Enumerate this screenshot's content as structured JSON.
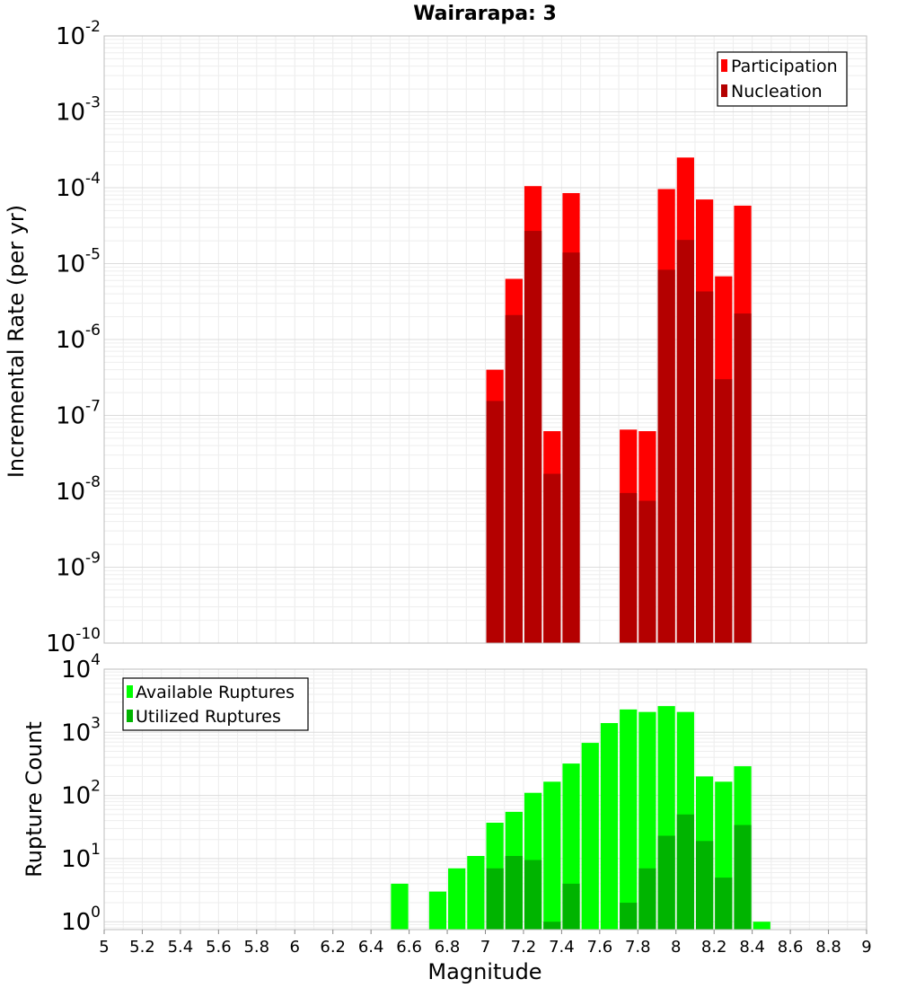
{
  "chart_data": [
    {
      "type": "bar",
      "title": "Wairarapa: 3",
      "xlabel": "",
      "ylabel": "Incremental Rate (per yr)",
      "xlim": [
        5,
        9
      ],
      "ylim": [
        1e-10,
        0.01
      ],
      "yscale": "log",
      "grid": true,
      "legend": "top-right",
      "bin_width": 0.1,
      "y_ticks": [
        {
          "base": "10",
          "exp": "-2",
          "value": 0.01
        },
        {
          "base": "10",
          "exp": "-3",
          "value": 0.001
        },
        {
          "base": "10",
          "exp": "-4",
          "value": 0.0001
        },
        {
          "base": "10",
          "exp": "-5",
          "value": 1e-05
        },
        {
          "base": "10",
          "exp": "-6",
          "value": 1e-06
        },
        {
          "base": "10",
          "exp": "-7",
          "value": 1e-07
        },
        {
          "base": "10",
          "exp": "-8",
          "value": 1e-08
        },
        {
          "base": "10",
          "exp": "-9",
          "value": 1e-09
        },
        {
          "base": "10",
          "exp": "-10",
          "value": 1e-10
        }
      ],
      "series": [
        {
          "name": "Participation",
          "color": "#ff0000",
          "x": [
            7.05,
            7.15,
            7.25,
            7.35,
            7.45,
            7.75,
            7.85,
            7.95,
            8.05,
            8.15,
            8.25,
            8.35
          ],
          "values": [
            4e-07,
            6.3e-06,
            0.000105,
            6.2e-08,
            8.5e-05,
            6.5e-08,
            6.2e-08,
            9.6e-05,
            0.00025,
            7e-05,
            6.8e-06,
            5.8e-05
          ]
        },
        {
          "name": "Nucleation",
          "color": "#b40000",
          "x": [
            7.05,
            7.15,
            7.25,
            7.35,
            7.45,
            7.75,
            7.85,
            7.95,
            8.05,
            8.15,
            8.25,
            8.35
          ],
          "values": [
            1.55e-07,
            2.1e-06,
            2.7e-05,
            1.7e-08,
            1.4e-05,
            9.5e-09,
            7.5e-09,
            8.3e-06,
            2.05e-05,
            4.3e-06,
            3e-07,
            2.2e-06
          ]
        }
      ]
    },
    {
      "type": "bar",
      "title": "",
      "xlabel": "Magnitude",
      "ylabel": "Rupture Count",
      "xlim": [
        5,
        9
      ],
      "ylim": [
        0.75,
        10000.0
      ],
      "yscale": "log",
      "grid": true,
      "legend": "top-left",
      "bin_width": 0.1,
      "x_ticks": [
        "5",
        "5.2",
        "5.4",
        "5.6",
        "5.8",
        "6",
        "6.2",
        "6.4",
        "6.6",
        "6.8",
        "7",
        "7.2",
        "7.4",
        "7.6",
        "7.8",
        "8",
        "8.2",
        "8.4",
        "8.6",
        "8.8",
        "9"
      ],
      "y_ticks": [
        {
          "base": "10",
          "exp": "4",
          "value": 10000.0
        },
        {
          "base": "10",
          "exp": "3",
          "value": 1000.0
        },
        {
          "base": "10",
          "exp": "2",
          "value": 100.0
        },
        {
          "base": "10",
          "exp": "1",
          "value": 10.0
        },
        {
          "base": "10",
          "exp": "0",
          "value": 1
        }
      ],
      "series": [
        {
          "name": "Available Ruptures",
          "color": "#00ff00",
          "x": [
            6.55,
            6.75,
            6.85,
            6.95,
            7.05,
            7.15,
            7.25,
            7.35,
            7.45,
            7.55,
            7.65,
            7.75,
            7.85,
            7.95,
            8.05,
            8.15,
            8.25,
            8.35,
            8.45
          ],
          "values": [
            4,
            3,
            7,
            11,
            37,
            55,
            110,
            165,
            320,
            680,
            1400,
            2300,
            2100,
            2600,
            2100,
            200,
            165,
            290,
            1
          ]
        },
        {
          "name": "Utilized Ruptures",
          "color": "#00b400",
          "x": [
            7.05,
            7.15,
            7.25,
            7.35,
            7.45,
            7.75,
            7.85,
            7.95,
            8.05,
            8.15,
            8.25,
            8.35
          ],
          "values": [
            7,
            11,
            9.5,
            1,
            4,
            2,
            7,
            23,
            50,
            19,
            5,
            34
          ]
        }
      ]
    }
  ]
}
